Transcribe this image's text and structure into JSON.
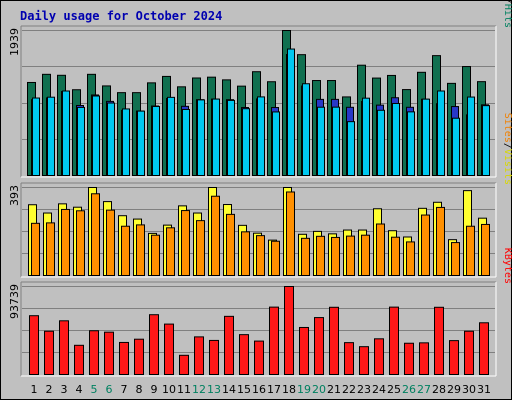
{
  "chart_data": {
    "type": "bar",
    "title": "Daily usage for October 2024",
    "days": [
      "1",
      "2",
      "3",
      "4",
      "5",
      "6",
      "7",
      "8",
      "9",
      "10",
      "11",
      "12",
      "13",
      "14",
      "15",
      "16",
      "17",
      "18",
      "19",
      "20",
      "21",
      "22",
      "23",
      "24",
      "25",
      "26",
      "27",
      "28",
      "29",
      "30",
      "31"
    ],
    "weekend_days": [
      "5",
      "6",
      "12",
      "13",
      "19",
      "20",
      "26",
      "27"
    ],
    "panels": [
      {
        "id": "hits",
        "max_label": "1939",
        "ymax": 1939,
        "legend": [
          {
            "text": "Pages",
            "color": "#00c8c8"
          },
          {
            "text": "/",
            "color": "#000000"
          },
          {
            "text": "Files",
            "color": "#0000c0"
          },
          {
            "text": "/",
            "color": "#000000"
          },
          {
            "text": "Hits",
            "color": "#008060"
          }
        ],
        "series": [
          {
            "name": "Hits",
            "color": "#107050",
            "values": [
              1244,
              1353,
              1340,
              1147,
              1353,
              1198,
              1108,
              1108,
              1239,
              1325,
              1186,
              1304,
              1315,
              1279,
              1195,
              1388,
              1254,
              1939,
              1616,
              1270,
              1270,
              1051,
              1475,
              1303,
              1338,
              1149,
              1380,
              1603,
              1232,
              1457,
              1255
            ]
          },
          {
            "name": "Files",
            "color": "#2838c8",
            "values": [
              1014,
              1037,
              1123,
              936,
              1077,
              991,
              871,
              862,
              929,
              1030,
              925,
              1014,
              1022,
              1014,
              909,
              1024,
              909,
              1618,
              1196,
              1018,
              1018,
              912,
              990,
              941,
              1040,
              912,
              1020,
              960,
              922,
              811,
              945
            ]
          },
          {
            "name": "Pages",
            "color": "#00c8f0",
            "values": [
              1036,
              1047,
              1130,
              910,
              1063,
              969,
              890,
              861,
              923,
              1045,
              883,
              1011,
              1022,
              1004,
              893,
              1051,
              850,
              1691,
              1227,
              913,
              914,
              720,
              1034,
              872,
              963,
              851,
              1021,
              1130,
              766,
              1049,
              934
            ]
          }
        ]
      },
      {
        "id": "visits",
        "max_label": "393",
        "ymax": 393,
        "legend": [
          {
            "text": "Sites",
            "color": "#f08000"
          },
          {
            "text": "/",
            "color": "#000000"
          },
          {
            "text": "Visits",
            "color": "#d8d800"
          }
        ],
        "series": [
          {
            "name": "Visits",
            "color": "#ffff30",
            "values": [
              316,
              279,
              320,
              305,
              393,
              330,
              267,
              252,
              188,
              225,
              311,
              279,
              393,
              317,
              224,
              189,
              158,
              393,
              184,
              197,
              186,
              203,
              203,
              298,
              200,
              172,
              300,
              327,
              160,
              379,
              256
            ]
          },
          {
            "name": "Sites",
            "color": "#ff9000",
            "values": [
              233,
              235,
              295,
              289,
              365,
              292,
              220,
              226,
              180,
              213,
              290,
              245,
              354,
              273,
              195,
              178,
              153,
              373,
              166,
              175,
              170,
              176,
              180,
              230,
              171,
              150,
              270,
              304,
              147,
              220,
              228
            ]
          }
        ]
      },
      {
        "id": "kbytes",
        "max_label": "93739",
        "ymax": 93739,
        "legend": [
          {
            "text": "KBytes",
            "color": "#ff0000"
          }
        ],
        "series": [
          {
            "name": "KBytes",
            "color": "#ff1818",
            "values": [
              62640,
              46100,
              57200,
              31100,
              46600,
              45100,
              34150,
              37600,
              63700,
              53700,
              20450,
              40080,
              36300,
              61950,
              42460,
              35600,
              71780,
              93739,
              50100,
              60640,
              71600,
              33950,
              29650,
              38020,
              71780,
              33300,
              33730,
              71600,
              36090,
              46100,
              55100
            ]
          }
        ]
      }
    ]
  }
}
